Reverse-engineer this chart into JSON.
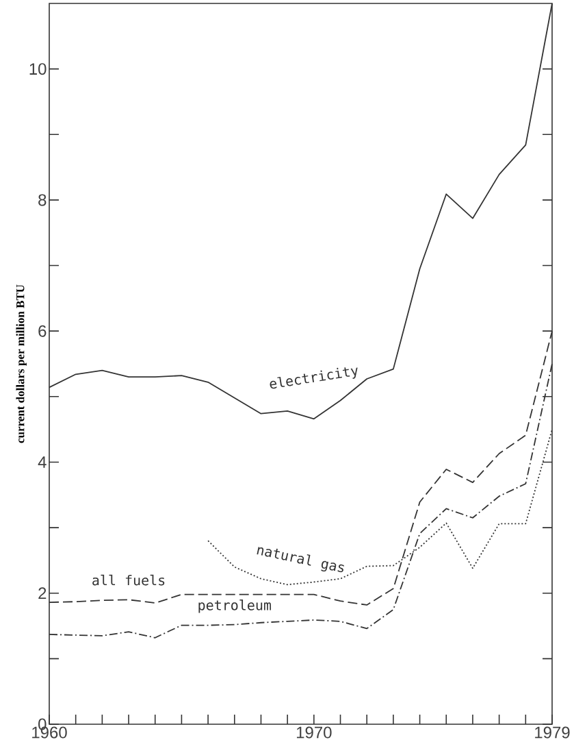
{
  "chart_data": {
    "type": "line",
    "ylabel": "current dollars per million BTU",
    "x": [
      1960,
      1961,
      1962,
      1963,
      1964,
      1965,
      1966,
      1967,
      1968,
      1969,
      1970,
      1971,
      1972,
      1973,
      1974,
      1975,
      1976,
      1977,
      1978,
      1979
    ],
    "series": [
      {
        "name": "electricity",
        "color": "#333333",
        "line_style": "solid",
        "values": [
          5.14,
          5.34,
          5.4,
          5.3,
          5.3,
          5.32,
          5.22,
          4.98,
          4.74,
          4.78,
          4.66,
          4.94,
          5.27,
          5.42,
          6.95,
          8.09,
          7.72,
          8.39,
          8.84,
          11.0
        ]
      },
      {
        "name": "natural gas",
        "color": "#333333",
        "line_style": "dotted",
        "x": [
          1966,
          1967,
          1968,
          1969,
          1970,
          1971,
          1972,
          1973,
          1974,
          1975,
          1976,
          1977,
          1978,
          1979
        ],
        "values": [
          2.8,
          2.4,
          2.22,
          2.13,
          2.17,
          2.22,
          2.41,
          2.42,
          2.7,
          3.07,
          2.38,
          3.06,
          3.06,
          4.5
        ]
      },
      {
        "name": "all fuels",
        "color": "#333333",
        "line_style": "dashed",
        "values": [
          1.86,
          1.87,
          1.89,
          1.9,
          1.85,
          1.98,
          1.98,
          1.98,
          1.98,
          1.98,
          1.98,
          1.88,
          1.82,
          2.07,
          3.39,
          3.89,
          3.69,
          4.13,
          4.41,
          6.0
        ]
      },
      {
        "name": "petroleum",
        "color": "#333333",
        "line_style": "dashdot",
        "values": [
          1.37,
          1.36,
          1.35,
          1.41,
          1.32,
          1.51,
          1.51,
          1.52,
          1.55,
          1.57,
          1.59,
          1.57,
          1.46,
          1.75,
          2.91,
          3.29,
          3.15,
          3.48,
          3.67,
          5.5
        ]
      }
    ],
    "xlim": [
      1960,
      1979
    ],
    "ylim": [
      0,
      11
    ],
    "xticks": [
      1960,
      {
        "value": 1961,
        "label": null
      },
      {
        "value": 1962,
        "label": null
      },
      {
        "value": 1963,
        "label": null
      },
      {
        "value": 1964,
        "label": null
      },
      {
        "value": 1965,
        "label": null
      },
      {
        "value": 1966,
        "label": null
      },
      {
        "value": 1967,
        "label": null
      },
      {
        "value": 1968,
        "label": null
      },
      {
        "value": 1969,
        "label": null
      },
      1970,
      {
        "value": 1971,
        "label": null
      },
      {
        "value": 1972,
        "label": null
      },
      {
        "value": 1973,
        "label": null
      },
      {
        "value": 1974,
        "label": null
      },
      {
        "value": 1975,
        "label": null
      },
      {
        "value": 1976,
        "label": null
      },
      {
        "value": 1977,
        "label": null
      },
      {
        "value": 1978,
        "label": null
      },
      1979
    ],
    "yticks": [
      0,
      {
        "value": 1,
        "label": null
      },
      2,
      {
        "value": 3,
        "label": null
      },
      4,
      {
        "value": 5,
        "label": null
      },
      6,
      {
        "value": 7,
        "label": null
      },
      8,
      {
        "value": 9,
        "label": null
      },
      10
    ],
    "grid": false,
    "marker": "none"
  }
}
